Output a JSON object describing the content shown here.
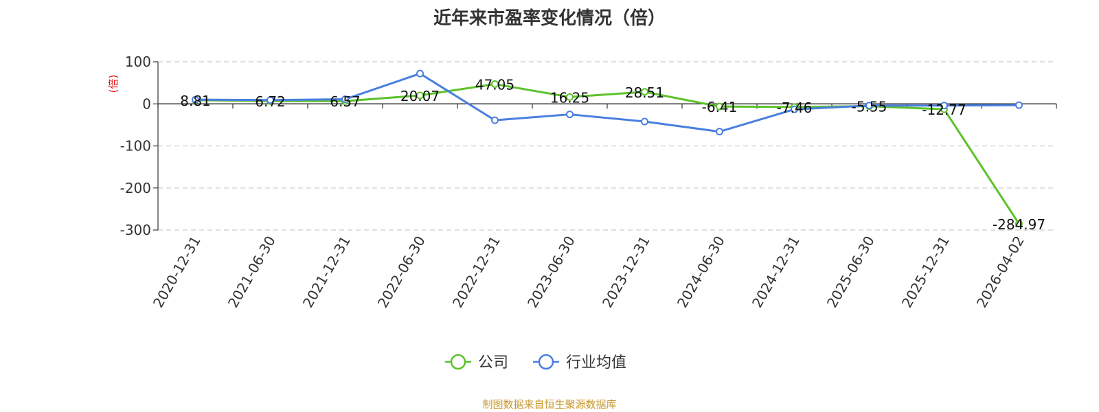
{
  "title": "近年来市盈率变化情况（倍）",
  "footer": "制图数据来自恒生聚源数据库",
  "colors": {
    "company": "#5cc22a",
    "industry": "#4a7fe0",
    "ylabel": "#ee1111"
  },
  "chart_data": {
    "type": "line",
    "ylabel": "(倍)",
    "ylim": [
      -300,
      100
    ],
    "yticks": [
      100,
      0,
      -100,
      -200,
      -300
    ],
    "grid": true,
    "legend_position": "bottom-center",
    "categories": [
      "2020-12-31",
      "2021-06-30",
      "2021-12-31",
      "2022-06-30",
      "2022-12-31",
      "2023-06-30",
      "2023-12-31",
      "2024-06-30",
      "2024-12-31",
      "2025-06-30",
      "2025-12-31",
      "2026-04-02"
    ],
    "series": [
      {
        "name": "公司",
        "values": [
          8.81,
          6.72,
          6.57,
          20.07,
          47.05,
          16.25,
          28.51,
          -6.41,
          -7.46,
          -5.55,
          -12.77,
          -284.97
        ],
        "labels": [
          "8.81",
          "6.72",
          "6.57",
          "20.07",
          "47.05",
          "16.25",
          "28.51",
          "-6.41",
          "-7.46",
          "-5.55",
          "-12.77",
          "-284.97"
        ]
      },
      {
        "name": "行业均值",
        "values": [
          10,
          9,
          11,
          72,
          -39,
          -25,
          -42,
          -66,
          -13,
          -4,
          -4,
          -3
        ]
      }
    ]
  }
}
